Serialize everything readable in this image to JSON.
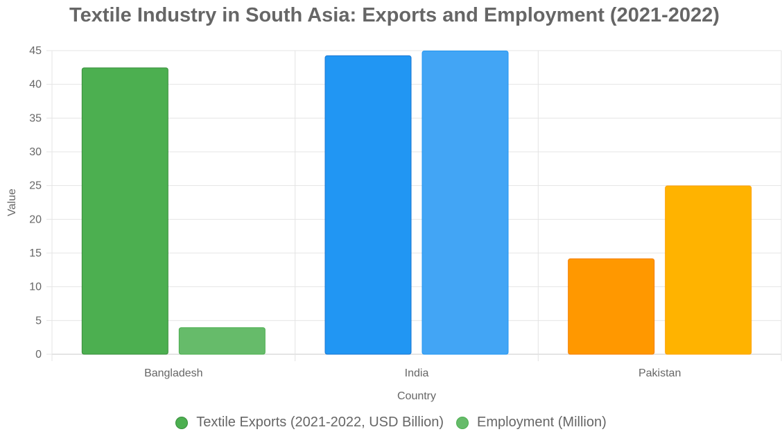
{
  "chart_data": {
    "type": "bar",
    "title": "Textile Industry in South Asia: Exports and Employment (2021-2022)",
    "xlabel": "Country",
    "ylabel": "Value",
    "categories": [
      "Bangladesh",
      "India",
      "Pakistan"
    ],
    "ylim": [
      0,
      45
    ],
    "yticks": [
      0,
      5,
      10,
      15,
      20,
      25,
      30,
      35,
      40,
      45
    ],
    "grid": true,
    "legend_position": "bottom",
    "series": [
      {
        "name": "Textile Exports (2021-2022, USD Billion)",
        "values": [
          42.5,
          44.3,
          14.2
        ]
      },
      {
        "name": "Employment (Million)",
        "values": [
          4.0,
          45.0,
          25.0
        ]
      }
    ],
    "bar_colors": [
      [
        "#4caf50",
        "#2196f3",
        "#ff9800"
      ],
      [
        "#66bb6a",
        "#42a5f5",
        "#ffb300"
      ]
    ],
    "bar_border_colors": [
      [
        "#388e3c",
        "#1976d2",
        "#f57c00"
      ],
      [
        "#4caf50",
        "#2196f3",
        "#ffa000"
      ]
    ],
    "legend_colors": [
      "#4caf50",
      "#66bb6a"
    ],
    "legend_border_colors": [
      "#388e3c",
      "#4caf50"
    ]
  }
}
